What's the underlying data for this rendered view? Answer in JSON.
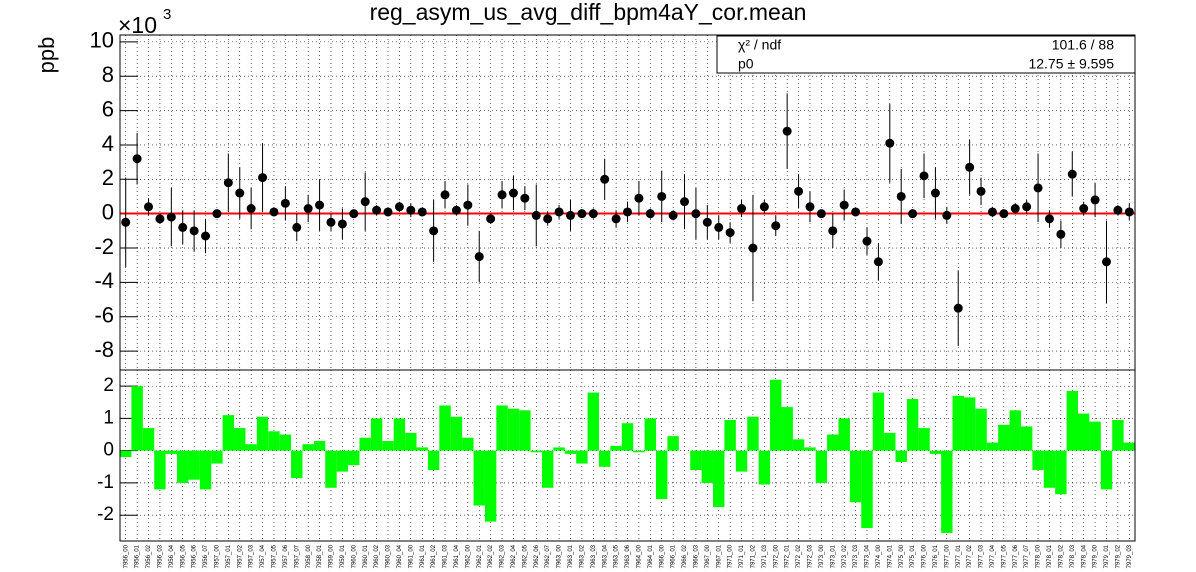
{
  "chart_data": [
    {
      "type": "errorpoints",
      "title": "reg_asym_us_avg_diff_bpm4aY_cor.mean",
      "y_label": "ppb",
      "y_multiplier": "×10",
      "y_multiplier_exp": "3",
      "values": [
        -0.5,
        3.2,
        0.4,
        -0.3,
        -0.2,
        -0.8,
        -1.0,
        -1.3,
        0.0,
        1.8,
        1.2,
        0.3,
        2.1,
        0.1,
        0.6,
        -0.8,
        0.3,
        0.5,
        -0.5,
        -0.6,
        0.0,
        0.7,
        0.2,
        0.1,
        0.4,
        0.2,
        0.1,
        -1.0,
        1.1,
        0.2,
        0.5,
        -2.5,
        -0.3,
        1.1,
        1.2,
        0.9,
        -0.1,
        -0.3,
        0.1,
        -0.1,
        0.0,
        0.0,
        2.0,
        -0.3,
        0.1,
        0.9,
        0.0,
        1.0,
        -0.1,
        0.7,
        0.0,
        -0.5,
        -0.8,
        -1.1,
        0.3,
        -2.0,
        0.4,
        -0.7,
        4.8,
        1.3,
        0.4,
        0.0,
        -1.0,
        0.5,
        0.1,
        -1.6,
        -2.8,
        4.1,
        1.0,
        0.0,
        2.2,
        1.2,
        -0.1,
        -5.5,
        2.7,
        1.3,
        0.1,
        0.0,
        0.3,
        0.4,
        1.5,
        -0.3,
        -1.2,
        2.3,
        0.3,
        0.8,
        -2.8,
        0.2,
        0.1
      ],
      "errors": [
        2.6,
        1.5,
        0.5,
        0.3,
        1.7,
        1.0,
        1.2,
        1.0,
        0.2,
        1.7,
        1.5,
        1.2,
        2.0,
        0.2,
        1.0,
        0.8,
        0.8,
        1.5,
        0.5,
        0.9,
        0.2,
        1.7,
        0.3,
        0.2,
        0.3,
        0.4,
        0.2,
        1.8,
        0.8,
        0.3,
        1.2,
        1.5,
        0.3,
        0.8,
        1.0,
        0.7,
        1.8,
        0.4,
        0.4,
        0.9,
        0.2,
        0.3,
        1.2,
        0.5,
        0.6,
        1.0,
        0.3,
        1.5,
        0.3,
        1.6,
        1.5,
        1.0,
        0.7,
        0.6,
        0.5,
        3.1,
        0.4,
        0.6,
        2.2,
        1.0,
        0.9,
        0.2,
        1.0,
        0.9,
        0.2,
        0.8,
        1.1,
        2.3,
        1.6,
        0.2,
        1.3,
        1.5,
        0.5,
        2.2,
        1.6,
        0.8,
        0.3,
        0.2,
        0.3,
        0.4,
        2.0,
        0.5,
        0.8,
        1.3,
        0.4,
        1.0,
        2.4,
        0.3,
        0.5
      ],
      "color": "#000000",
      "fit_color": "#ff0000",
      "fit_line": 0.01275,
      "stats": {
        "chi2_label": "χ² / ndf",
        "chi2_value": "101.6 / 88",
        "p0_label": "p0",
        "p0_value": "12.75 ± 9.595"
      },
      "ylim": [
        -9.1,
        10.4
      ],
      "yticks": [
        -8,
        -6,
        -4,
        -2,
        0,
        2,
        4,
        6,
        8,
        10
      ],
      "grid": true
    },
    {
      "type": "bar",
      "color": "#00ff00",
      "categories": [
        "7956_00",
        "7956_01",
        "7956_02",
        "7956_03",
        "7956_04",
        "7956_05",
        "7956_06",
        "7956_07",
        "7957_00",
        "7957_01",
        "7957_02",
        "7957_03",
        "7957_04",
        "7957_05",
        "7957_06",
        "7957_07",
        "7958_00",
        "7958_01",
        "7959_00",
        "7959_01",
        "7960_00",
        "7960_01",
        "7960_02",
        "7960_03",
        "7960_04",
        "7961_00",
        "7961_01",
        "7961_02",
        "7961_03",
        "7961_04",
        "7962_00",
        "7962_01",
        "7962_02",
        "7962_03",
        "7962_04",
        "7962_05",
        "7962_06",
        "7962_07",
        "7963_00",
        "7963_01",
        "7963_02",
        "7963_03",
        "7963_04",
        "7963_05",
        "7963_06",
        "7964_00",
        "7964_01",
        "7966_00",
        "7966_01",
        "7966_02",
        "7966_03",
        "7967_00",
        "7967_01",
        "7971_00",
        "7971_01",
        "7971_02",
        "7971_03",
        "7972_00",
        "7972_01",
        "7972_02",
        "7972_03",
        "7973_00",
        "7973_01",
        "7973_02",
        "7973_03",
        "7973_04",
        "7974_00",
        "7974_01",
        "7975_00",
        "7975_01",
        "7976_00",
        "7976_01",
        "7977_00",
        "7977_01",
        "7977_02",
        "7977_03",
        "7977_04",
        "7977_05",
        "7977_06",
        "7977_07",
        "7978_00",
        "7978_01",
        "7978_02",
        "7978_03",
        "7978_04",
        "7979_00",
        "7979_01",
        "7979_02",
        "7979_03"
      ],
      "values": [
        -0.2,
        2.0,
        0.7,
        -1.2,
        -0.1,
        -1.0,
        -0.9,
        -1.2,
        -0.4,
        1.1,
        0.7,
        0.2,
        1.05,
        0.6,
        0.5,
        -0.85,
        0.2,
        0.3,
        -1.15,
        -0.65,
        -0.45,
        0.4,
        1.0,
        0.3,
        1.0,
        0.55,
        0.1,
        -0.6,
        1.4,
        1.05,
        0.4,
        -1.7,
        -2.2,
        1.4,
        1.3,
        1.25,
        -0.05,
        -1.15,
        0.1,
        -0.1,
        -0.4,
        1.8,
        -0.5,
        0.15,
        0.85,
        -0.05,
        1.0,
        -1.5,
        0.45,
        0.0,
        -0.6,
        -1.0,
        -1.75,
        0.95,
        -0.65,
        1.05,
        -1.05,
        2.2,
        1.35,
        0.35,
        0.1,
        -1.0,
        0.5,
        1.0,
        -1.6,
        -2.4,
        1.8,
        0.55,
        -0.35,
        1.6,
        0.7,
        -0.1,
        -2.55,
        1.7,
        1.65,
        1.3,
        0.25,
        0.8,
        1.25,
        0.75,
        -0.6,
        -1.15,
        -1.35,
        1.85,
        1.15,
        0.9,
        -1.2,
        0.95,
        0.25
      ],
      "ylim": [
        -2.8,
        2.5
      ],
      "yticks": [
        -2,
        -1,
        0,
        1,
        2
      ],
      "grid": true
    }
  ]
}
